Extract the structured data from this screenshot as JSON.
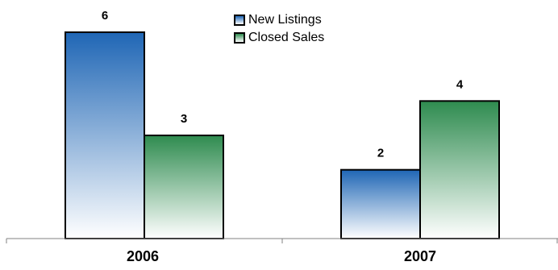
{
  "chart_data": {
    "type": "bar",
    "categories": [
      "2006",
      "2007"
    ],
    "series": [
      {
        "name": "New Listings",
        "values": [
          6,
          2
        ],
        "color": "#1f66b5"
      },
      {
        "name": "Closed Sales",
        "values": [
          3,
          4
        ],
        "color": "#2e8b4f"
      }
    ],
    "ylim": [
      0,
      6
    ],
    "grid": false,
    "legend": "top-center",
    "data_labels": true
  }
}
